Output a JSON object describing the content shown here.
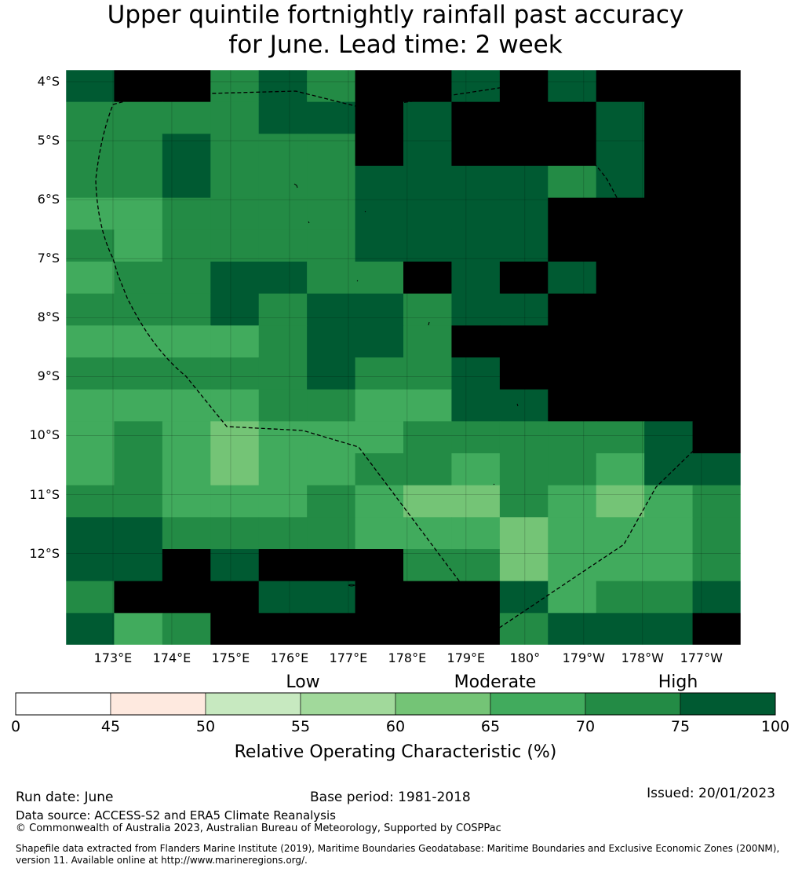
{
  "title": {
    "line1": "Upper quintile fortnightly rainfall past accuracy",
    "line2": "for June. Lead time: 2 week"
  },
  "map": {
    "lat_labels": [
      "4°S",
      "5°S",
      "6°S",
      "7°S",
      "8°S",
      "9°S",
      "10°S",
      "11°S",
      "12°S"
    ],
    "lat_values": [
      -4,
      -5,
      -6,
      -7,
      -8,
      -9,
      -10,
      -11,
      -12
    ],
    "lon_labels": [
      "173°E",
      "174°E",
      "175°E",
      "176°E",
      "177°E",
      "178°E",
      "179°E",
      "180°",
      "179°W",
      "178°W",
      "177°W"
    ],
    "lon_values": [
      173,
      174,
      175,
      176,
      177,
      178,
      179,
      180,
      181,
      182,
      183
    ],
    "extent": {
      "lon_min": 172.2,
      "lon_max": 183.67,
      "lat_top": -3.8,
      "lat_bottom": -13.55
    },
    "grid_cols": 14,
    "grid_rows": 18,
    "cells": [
      [
        7,
        8,
        8,
        6,
        7,
        6,
        8,
        8,
        7,
        8,
        7,
        8,
        8,
        8
      ],
      [
        6,
        6,
        6,
        6,
        7,
        7,
        8,
        7,
        8,
        8,
        8,
        7,
        8,
        8
      ],
      [
        6,
        6,
        7,
        6,
        6,
        6,
        8,
        7,
        8,
        8,
        8,
        7,
        8,
        8
      ],
      [
        6,
        6,
        7,
        6,
        6,
        6,
        7,
        7,
        7,
        7,
        6,
        7,
        8,
        8
      ],
      [
        5,
        5,
        6,
        6,
        6,
        6,
        7,
        7,
        7,
        7,
        8,
        8,
        8,
        8
      ],
      [
        6,
        5,
        6,
        6,
        6,
        6,
        7,
        7,
        7,
        7,
        8,
        8,
        8,
        8
      ],
      [
        5,
        6,
        6,
        7,
        7,
        6,
        6,
        8,
        7,
        8,
        7,
        8,
        8,
        8
      ],
      [
        6,
        6,
        6,
        7,
        6,
        7,
        7,
        6,
        7,
        7,
        8,
        8,
        8,
        8
      ],
      [
        5,
        5,
        5,
        5,
        6,
        7,
        7,
        6,
        8,
        8,
        8,
        8,
        8,
        8
      ],
      [
        6,
        6,
        6,
        6,
        6,
        7,
        6,
        6,
        7,
        8,
        8,
        8,
        8,
        8
      ],
      [
        5,
        5,
        5,
        5,
        6,
        6,
        5,
        5,
        7,
        7,
        8,
        8,
        8,
        8
      ],
      [
        5,
        6,
        5,
        4,
        5,
        5,
        5,
        6,
        6,
        6,
        6,
        6,
        7,
        8
      ],
      [
        5,
        6,
        5,
        4,
        5,
        5,
        6,
        6,
        5,
        6,
        6,
        5,
        7,
        7
      ],
      [
        6,
        6,
        5,
        5,
        5,
        6,
        5,
        4,
        4,
        6,
        5,
        4,
        5,
        6
      ],
      [
        7,
        7,
        6,
        6,
        6,
        6,
        5,
        5,
        5,
        4,
        5,
        5,
        5,
        6
      ],
      [
        7,
        7,
        8,
        7,
        8,
        8,
        8,
        6,
        6,
        4,
        5,
        5,
        5,
        6
      ],
      [
        6,
        8,
        8,
        8,
        7,
        7,
        8,
        8,
        8,
        7,
        5,
        6,
        6,
        7
      ],
      [
        7,
        5,
        6,
        8,
        8,
        8,
        8,
        8,
        8,
        6,
        7,
        7,
        7,
        8
      ]
    ]
  },
  "colorbar": {
    "ticks": [
      "0",
      "45",
      "50",
      "55",
      "60",
      "65",
      "70",
      "75",
      "100"
    ],
    "tick_values": [
      0,
      45,
      50,
      55,
      60,
      65,
      70,
      75,
      100
    ],
    "colors": [
      "#ffffff",
      "#fee9df",
      "#c7e9c0",
      "#a1d99b",
      "#74c476",
      "#41ab5d",
      "#238b45",
      "#005a32"
    ],
    "band_labels": [
      "Low",
      "Moderate",
      "High"
    ],
    "title": "Relative Operating Characteristic (%)"
  },
  "footer": {
    "run_date": "Run date: June",
    "base_period": "Base period: 1981-2018",
    "issued": "Issued: 20/01/2023",
    "data_source": "Data source: ACCESS-S2 and ERA5 Climate Reanalysis",
    "copyright": "© Commonwealth of Australia 2023, Australian Bureau of Meteorology, Supported by COSPPac",
    "shapefile_line1": "Shapefile data extracted from Flanders Marine Institute (2019), Maritime Boundaries Geodatabase: Maritime Boundaries and Exclusive Economic Zones (200NM),",
    "shapefile_line2": "version 11. Available online at http://www.marineregions.org/."
  }
}
